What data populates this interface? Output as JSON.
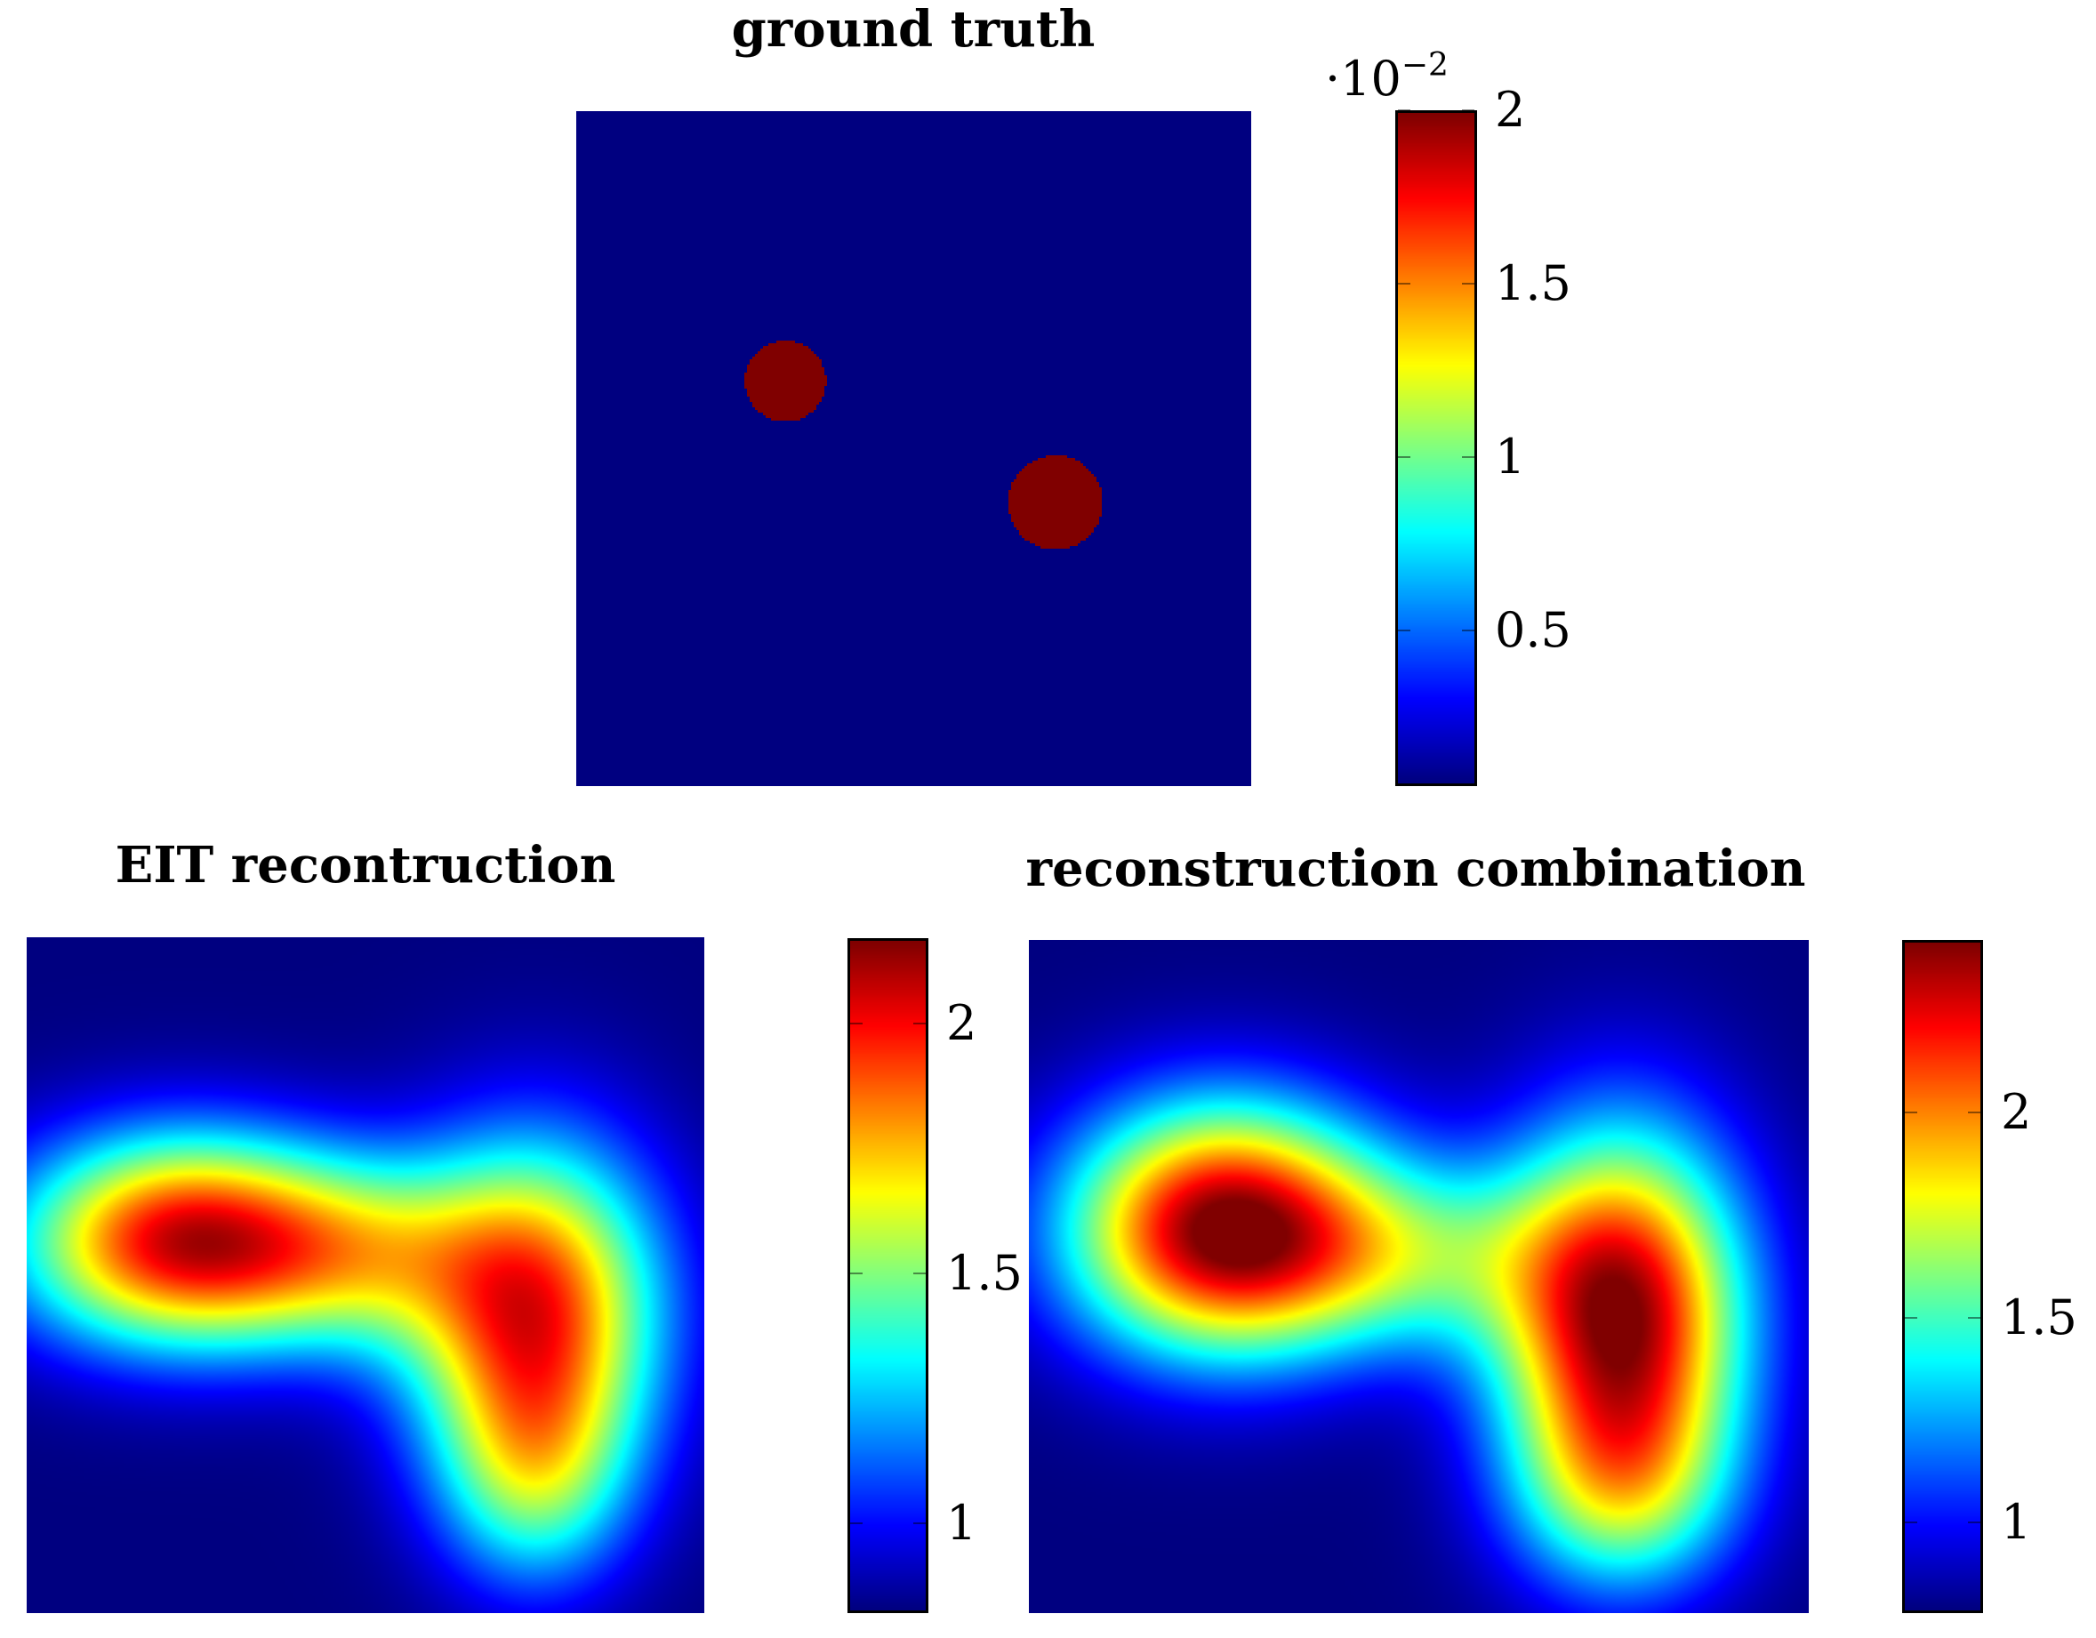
{
  "chart_data": [
    {
      "type": "heatmap",
      "title": "ground truth",
      "colormap": "jet",
      "colorbar": {
        "range": [
          0.0005,
          0.02
        ],
        "ticks": [
          0.005,
          0.01,
          0.015,
          0.02
        ],
        "tick_labels": [
          "0.5",
          "1",
          "1.5",
          "2"
        ],
        "multiplier_label": "·10",
        "multiplier_exponent": "−2"
      },
      "background_value": 0.0005,
      "inclusions": [
        {
          "cx": 0.31,
          "cy": 0.4,
          "r": 0.06,
          "value": 0.02
        },
        {
          "cx": 0.71,
          "cy": 0.58,
          "r": 0.07,
          "value": 0.02
        }
      ]
    },
    {
      "type": "heatmap",
      "title": "EIT recontruction",
      "colormap": "jet",
      "colorbar": {
        "range": [
          0.82,
          2.17
        ],
        "ticks": [
          1,
          1.5,
          2
        ],
        "tick_labels": [
          "1",
          "1.5",
          "2"
        ]
      },
      "background_value": 0.82,
      "blobs": [
        {
          "cx": 0.23,
          "cy": 0.45,
          "sx": 0.17,
          "sy": 0.11,
          "amp": 1.22
        },
        {
          "cx": 0.75,
          "cy": 0.55,
          "sx": 0.13,
          "sy": 0.17,
          "amp": 1.1
        },
        {
          "cx": 0.5,
          "cy": 0.47,
          "sx": 0.14,
          "sy": 0.1,
          "amp": 0.5
        },
        {
          "cx": 0.75,
          "cy": 0.8,
          "sx": 0.1,
          "sy": 0.12,
          "amp": 0.5
        }
      ]
    },
    {
      "type": "heatmap",
      "title": "reconstruction combination",
      "colormap": "jet",
      "colorbar": {
        "range": [
          0.78,
          2.42
        ],
        "ticks": [
          1,
          1.5,
          2
        ],
        "tick_labels": [
          "1",
          "1.5",
          "2"
        ]
      },
      "background_value": 0.78,
      "blobs": [
        {
          "cx": 0.25,
          "cy": 0.43,
          "sx": 0.14,
          "sy": 0.13,
          "amp": 1.64
        },
        {
          "cx": 0.76,
          "cy": 0.56,
          "sx": 0.11,
          "sy": 0.19,
          "amp": 1.6
        },
        {
          "cx": 0.5,
          "cy": 0.47,
          "sx": 0.14,
          "sy": 0.1,
          "amp": 0.55
        },
        {
          "cx": 0.76,
          "cy": 0.82,
          "sx": 0.1,
          "sy": 0.11,
          "amp": 0.55
        }
      ]
    }
  ]
}
